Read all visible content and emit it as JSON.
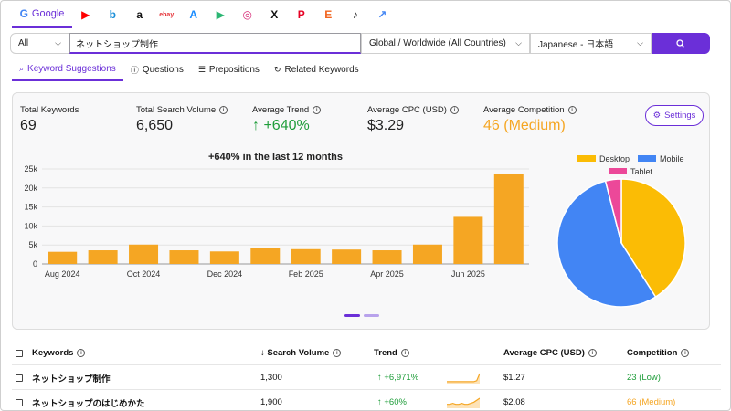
{
  "engines": {
    "google_label": "Google",
    "items": [
      {
        "name": "youtube-icon",
        "glyph": "▶",
        "color": "#ff0000"
      },
      {
        "name": "bing-icon",
        "glyph": "b",
        "color": "#1c8fd8"
      },
      {
        "name": "amazon-icon",
        "glyph": "a",
        "color": "#111111"
      },
      {
        "name": "ebay-icon",
        "glyph": "ebay",
        "color": "#e53238"
      },
      {
        "name": "app-store-icon",
        "glyph": "A",
        "color": "#1a8cff"
      },
      {
        "name": "google-play-icon",
        "glyph": "▶",
        "color": "#2bb673"
      },
      {
        "name": "instagram-icon",
        "glyph": "◎",
        "color": "#d62976"
      },
      {
        "name": "x-icon",
        "glyph": "X",
        "color": "#111111"
      },
      {
        "name": "pinterest-icon",
        "glyph": "P",
        "color": "#e60023"
      },
      {
        "name": "etsy-icon",
        "glyph": "E",
        "color": "#f1641e"
      },
      {
        "name": "tiktok-icon",
        "glyph": "♪",
        "color": "#111111"
      },
      {
        "name": "trends-icon",
        "glyph": "↗",
        "color": "#4285f4"
      }
    ]
  },
  "search": {
    "type_value": "All",
    "keyword": "ネットショップ制作",
    "location": "Global / Worldwide (All Countries)",
    "language": "Japanese - 日本語"
  },
  "subtabs": [
    {
      "label": "Keyword Suggestions",
      "icon": "search-icon"
    },
    {
      "label": "Questions",
      "icon": "question-icon"
    },
    {
      "label": "Prepositions",
      "icon": "list-icon"
    },
    {
      "label": "Related Keywords",
      "icon": "refresh-icon"
    }
  ],
  "stats": {
    "total_keywords": {
      "label": "Total Keywords",
      "value": "69"
    },
    "total_volume": {
      "label": "Total Search Volume",
      "value": "6,650"
    },
    "avg_trend": {
      "label": "Average Trend",
      "value": "↑ +640%"
    },
    "avg_cpc": {
      "label": "Average CPC (USD)",
      "value": "$3.29"
    },
    "avg_competition": {
      "label": "Average Competition",
      "value": "46 (Medium)"
    },
    "settings_label": "Settings"
  },
  "colors": {
    "accent": "#6b2fd8",
    "bar": "#f5a623",
    "trend_green": "#1f9d3a",
    "competition_orange": "#f5a623",
    "desktop": "#fbbc05",
    "mobile": "#4285f4",
    "tablet": "#ec4899"
  },
  "chart_data": [
    {
      "type": "bar",
      "title": "+640% in the last 12 months",
      "categories": [
        "Aug 2024",
        "Sep 2024",
        "Oct 2024",
        "Nov 2024",
        "Dec 2024",
        "Jan 2025",
        "Feb 2025",
        "Mar 2025",
        "Apr 2025",
        "May 2025",
        "Jun 2025",
        "Jul 2025"
      ],
      "tick_labels": [
        "Aug 2024",
        "",
        "Oct 2024",
        "",
        "Dec 2024",
        "",
        "Feb 2025",
        "",
        "Apr 2025",
        "",
        "Jun 2025",
        ""
      ],
      "values": [
        3200,
        3600,
        5100,
        3600,
        3300,
        4100,
        3900,
        3800,
        3600,
        5100,
        12400,
        23800
      ],
      "y_ticks": [
        "0",
        "5k",
        "10k",
        "15k",
        "20k",
        "25k"
      ],
      "ylim": [
        0,
        25000
      ],
      "grid": true
    },
    {
      "type": "pie",
      "legend": [
        "Desktop",
        "Mobile",
        "Tablet"
      ],
      "values": [
        41,
        55,
        4
      ],
      "legend_position": "top"
    }
  ],
  "table": {
    "headers": {
      "keywords": "Keywords",
      "volume": "↓ Search Volume",
      "trend": "Trend",
      "cpc": "Average CPC (USD)",
      "competition": "Competition"
    },
    "rows": [
      {
        "keyword": "ネットショップ制作",
        "volume": "1,300",
        "trend": "↑ +6,971%",
        "cpc": "$1.27",
        "competition": "23 (Low)",
        "comp_color": "#1f9d3a",
        "spark": [
          1,
          1,
          1,
          1,
          1,
          1,
          1,
          1,
          1,
          1,
          2,
          9
        ]
      },
      {
        "keyword": "ネットショップのはじめかた",
        "volume": "1,900",
        "trend": "↑ +60%",
        "cpc": "$2.08",
        "competition": "66 (Medium)",
        "comp_color": "#f5a623",
        "spark": [
          3,
          3,
          4,
          3,
          3,
          4,
          3,
          3,
          4,
          5,
          7,
          9
        ]
      }
    ]
  }
}
